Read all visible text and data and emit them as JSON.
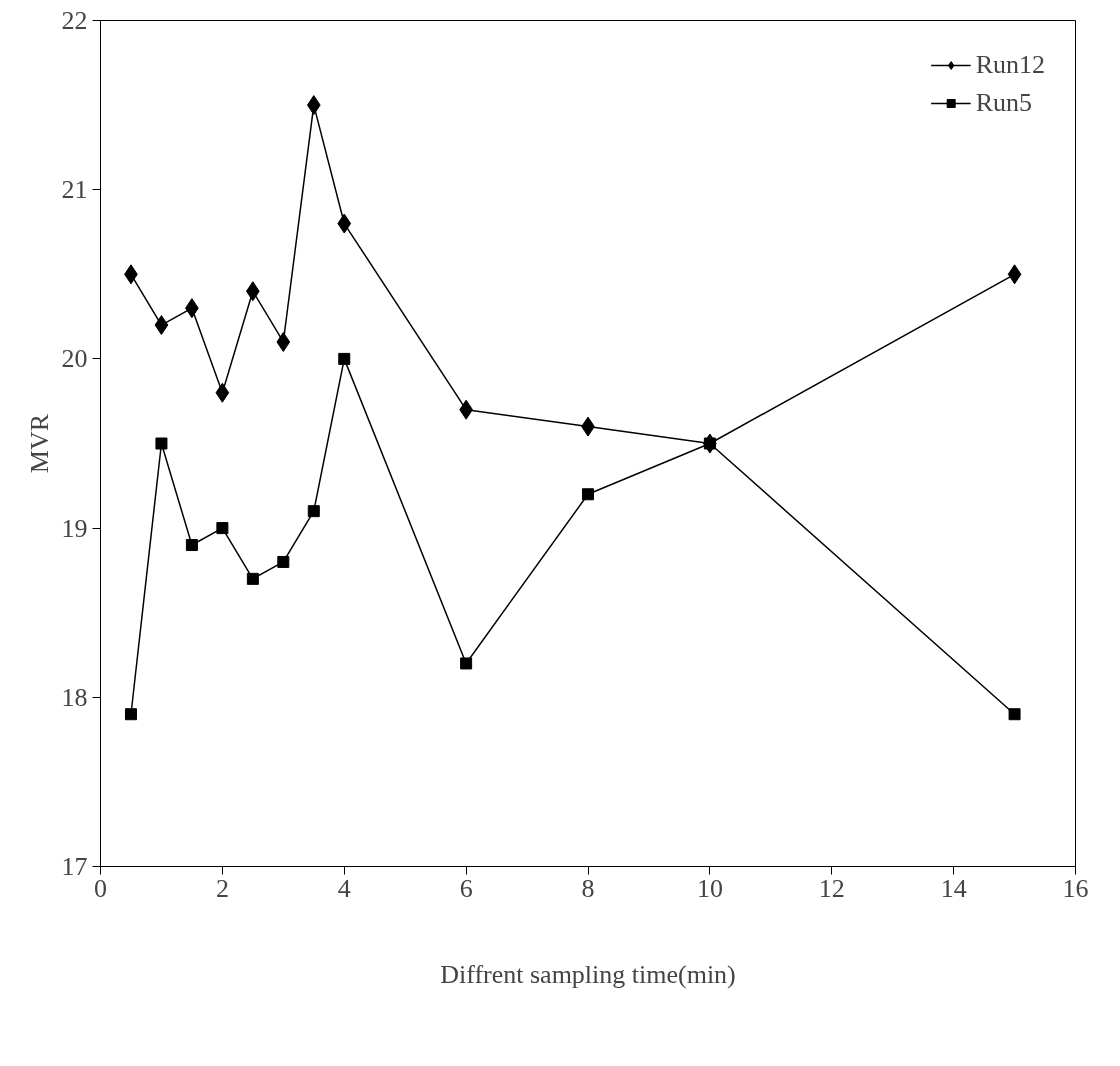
{
  "chart_data": {
    "type": "line",
    "xlabel": "Diffrent sampling time(min)",
    "ylabel": "MVR",
    "x": [
      0.5,
      1,
      1.5,
      2,
      2.5,
      3,
      3.5,
      4,
      6,
      8,
      10,
      15
    ],
    "series": [
      {
        "name": "Run12",
        "color": "#000000",
        "marker": "diamond",
        "values": [
          20.5,
          20.2,
          20.3,
          19.8,
          20.4,
          20.1,
          21.5,
          20.8,
          19.7,
          19.6,
          19.5,
          20.5
        ]
      },
      {
        "name": "Run5",
        "color": "#000000",
        "marker": "square",
        "values": [
          17.9,
          19.5,
          18.9,
          19.0,
          18.7,
          18.8,
          19.1,
          20.0,
          18.2,
          19.2,
          19.5,
          17.9
        ]
      }
    ],
    "xlim": [
      0,
      16
    ],
    "xticks": [
      0,
      2,
      4,
      6,
      8,
      10,
      12,
      14,
      16
    ],
    "ylim": [
      17,
      22
    ],
    "yticks": [
      17,
      18,
      19,
      20,
      21,
      22
    ],
    "grid": false,
    "legend": "top right",
    "line_style": "solid"
  }
}
